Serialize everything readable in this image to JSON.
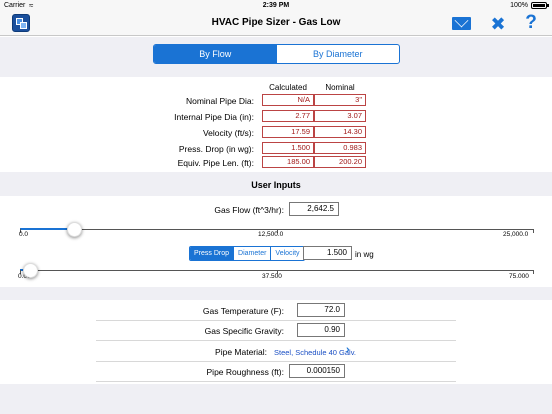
{
  "status_bar": {
    "carrier": "Carrier",
    "time": "2:39 PM",
    "battery": "100%"
  },
  "header": {
    "title": "HVAC Pipe Sizer - Gas Low"
  },
  "icons": {
    "app": "app-logo-icon",
    "mail": "mail-icon",
    "tools": "tools-icon",
    "help": "help-icon"
  },
  "mode_tabs": [
    {
      "label": "By Flow",
      "active": true
    },
    {
      "label": "By Diameter",
      "active": false
    }
  ],
  "results": {
    "col_calculated": "Calculated",
    "col_nominal": "Nominal",
    "rows": [
      {
        "label": "Nominal Pipe Dia:",
        "calculated": "N/A",
        "nominal": "3\""
      },
      {
        "label": "Internal Pipe Dia (in):",
        "calculated": "2.77",
        "nominal": "3.07"
      },
      {
        "label": "Velocity (ft/s):",
        "calculated": "17.59",
        "nominal": "14.30"
      },
      {
        "label": "Press. Drop (in wg):",
        "calculated": "1.500",
        "nominal": "0.983"
      },
      {
        "label": "Equiv. Pipe Len. (ft):",
        "calculated": "185.00",
        "nominal": "200.20"
      }
    ]
  },
  "inputs": {
    "section_title": "User Inputs",
    "gas_flow": {
      "label": "Gas Flow (ft^3/hr):",
      "value": "2,642.5"
    },
    "flow_slider": {
      "min": "0.0",
      "mid": "12,500.0",
      "max": "25,000.0",
      "value": 2642.5,
      "range": [
        0,
        25000
      ]
    },
    "constraint_tabs": [
      {
        "label": "Press Drop",
        "active": true
      },
      {
        "label": "Diameter",
        "active": false
      },
      {
        "label": "Velocity",
        "active": false
      }
    ],
    "constraint": {
      "value": "1.500",
      "unit": "in wg"
    },
    "constraint_slider": {
      "min": "0.00",
      "mid": "37.500",
      "max": "75.000",
      "value": 1.5,
      "range": [
        0,
        75
      ]
    }
  },
  "properties": {
    "gas_temperature": {
      "label": "Gas Temperature (F):",
      "value": "72.0"
    },
    "gas_specific_gravity": {
      "label": "Gas Specific Gravity:",
      "value": "0.90"
    },
    "pipe_material": {
      "label": "Pipe Material:",
      "value": "Steel, Schedule 40 Galv."
    },
    "pipe_roughness": {
      "label": "Pipe Roughness (ft):",
      "value": "0.000150"
    }
  },
  "colors": {
    "accent": "#1a73d4",
    "result_text": "#a01818",
    "result_border": "#bb4444",
    "background_band": "#efeff4"
  }
}
